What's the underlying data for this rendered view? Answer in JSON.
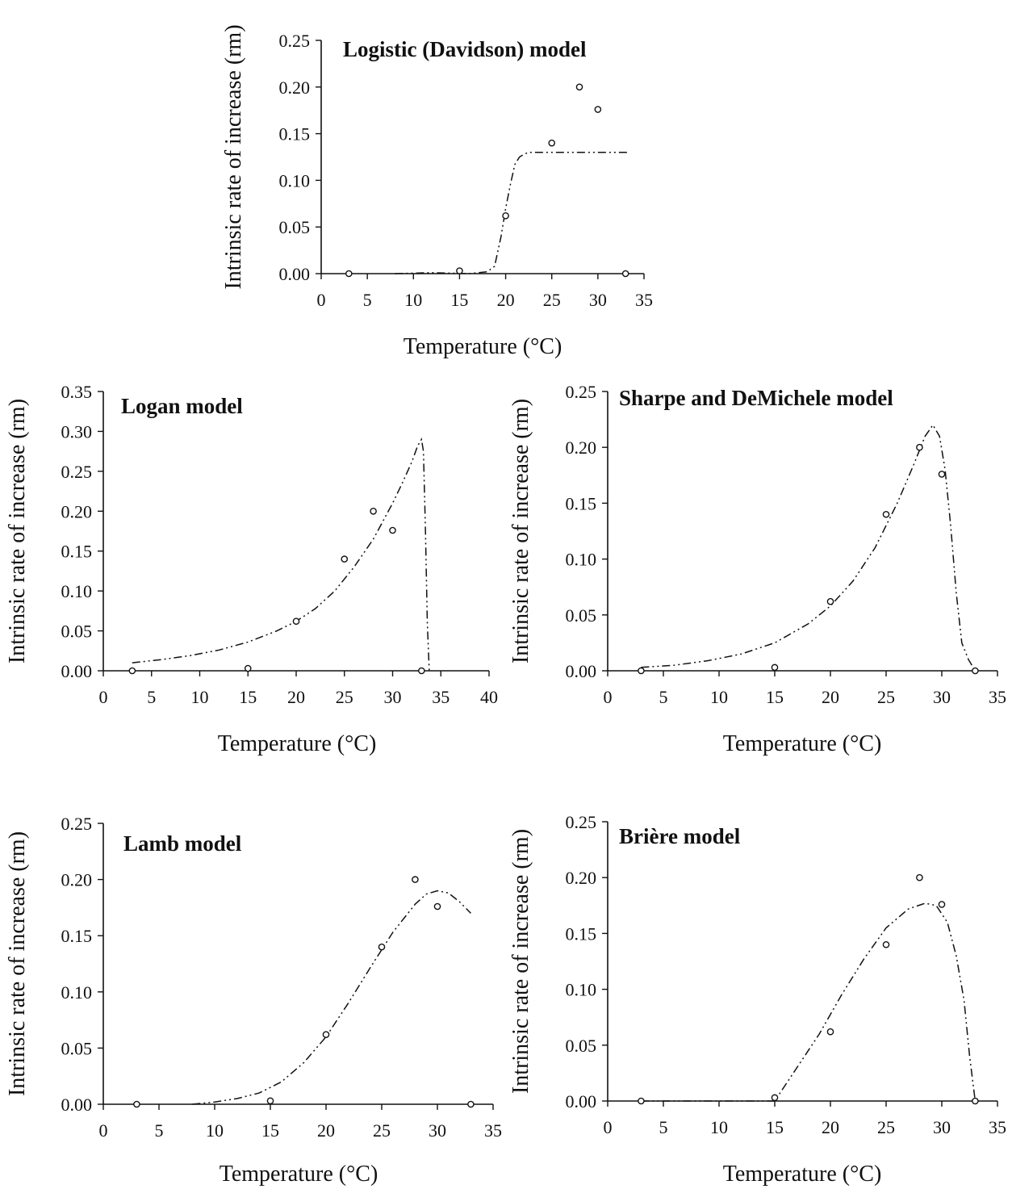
{
  "chart_data": [
    {
      "type": "scatter",
      "title": "Logistic (Davidson) model",
      "xlabel": "Temperature (°C)",
      "ylabel": "Intrinsic rate of increase (rm)",
      "xlim": [
        0,
        35
      ],
      "ylim": [
        0,
        0.25
      ],
      "xticks": [
        "0",
        "5",
        "10",
        "15",
        "20",
        "25",
        "30",
        "35"
      ],
      "yticks": [
        "0.00",
        "0.05",
        "0.10",
        "0.15",
        "0.20",
        "0.25"
      ],
      "observed": {
        "x": [
          3,
          15,
          20,
          25,
          28,
          30,
          33
        ],
        "y": [
          0.0,
          0.003,
          0.062,
          0.14,
          0.2,
          0.176,
          0.0
        ]
      },
      "fitted": {
        "x": [
          8,
          12,
          16,
          18,
          18.8,
          19.5,
          20.0,
          20.5,
          21.0,
          21.5,
          22.0,
          22.5,
          25,
          27,
          30,
          33.2
        ],
        "y": [
          0.0,
          0.001,
          0.0,
          0.002,
          0.008,
          0.04,
          0.07,
          0.095,
          0.117,
          0.125,
          0.128,
          0.13,
          0.13,
          0.13,
          0.13,
          0.13
        ]
      }
    },
    {
      "type": "scatter",
      "title": "Logan model",
      "xlabel": "Temperature (°C)",
      "ylabel": "Intrinsic rate of increase (rm)",
      "xlim": [
        0,
        40
      ],
      "ylim": [
        0,
        0.35
      ],
      "xticks": [
        "0",
        "5",
        "10",
        "15",
        "20",
        "25",
        "30",
        "35",
        "40"
      ],
      "yticks": [
        "0.00",
        "0.05",
        "0.10",
        "0.15",
        "0.20",
        "0.25",
        "0.30",
        "0.35"
      ],
      "observed": {
        "x": [
          3,
          15,
          20,
          25,
          28,
          30,
          33
        ],
        "y": [
          0.0,
          0.003,
          0.062,
          0.14,
          0.2,
          0.176,
          0.0
        ]
      },
      "fitted": {
        "x": [
          3,
          6,
          9,
          12,
          15,
          18,
          20,
          22,
          24,
          26,
          28,
          30,
          31,
          32,
          32.6,
          33.0,
          33.2,
          33.4,
          33.6,
          33.8
        ],
        "y": [
          0.01,
          0.014,
          0.019,
          0.026,
          0.036,
          0.05,
          0.062,
          0.078,
          0.1,
          0.13,
          0.165,
          0.21,
          0.235,
          0.262,
          0.282,
          0.29,
          0.275,
          0.18,
          0.06,
          0.0
        ]
      }
    },
    {
      "type": "scatter",
      "title": "Sharpe and DeMichele model",
      "xlabel": "Temperature (°C)",
      "ylabel": "Intrinsic rate of increase (rm)",
      "xlim": [
        0,
        35
      ],
      "ylim": [
        0,
        0.25
      ],
      "xticks": [
        "0",
        "5",
        "10",
        "15",
        "20",
        "25",
        "30",
        "35"
      ],
      "yticks": [
        "0.00",
        "0.05",
        "0.10",
        "0.15",
        "0.20",
        "0.25"
      ],
      "observed": {
        "x": [
          3,
          15,
          20,
          25,
          28,
          30,
          33
        ],
        "y": [
          0.0,
          0.003,
          0.062,
          0.14,
          0.2,
          0.176,
          0.0
        ]
      },
      "fitted": {
        "x": [
          3,
          6,
          9,
          12,
          15,
          18,
          20,
          22,
          24,
          26,
          27.5,
          28.5,
          29.2,
          29.8,
          30.3,
          30.8,
          31.3,
          31.8,
          32.4,
          33
        ],
        "y": [
          0.003,
          0.005,
          0.009,
          0.015,
          0.025,
          0.042,
          0.058,
          0.08,
          0.11,
          0.15,
          0.185,
          0.21,
          0.22,
          0.21,
          0.18,
          0.13,
          0.07,
          0.025,
          0.01,
          0.0
        ]
      }
    },
    {
      "type": "scatter",
      "title": "Lamb model",
      "xlabel": "Temperature (°C)",
      "ylabel": "Intrinsic rate of increase (rm)",
      "xlim": [
        0,
        35
      ],
      "ylim": [
        0,
        0.25
      ],
      "xticks": [
        "0",
        "5",
        "10",
        "15",
        "20",
        "25",
        "30",
        "35"
      ],
      "yticks": [
        "0.00",
        "0.05",
        "0.10",
        "0.15",
        "0.20",
        "0.25"
      ],
      "observed": {
        "x": [
          3,
          15,
          20,
          25,
          28,
          30,
          33
        ],
        "y": [
          0.0,
          0.003,
          0.062,
          0.14,
          0.2,
          0.176,
          0.0
        ]
      },
      "fitted": {
        "x": [
          8,
          10,
          12,
          14,
          16,
          18,
          20,
          22,
          24,
          26,
          28,
          29,
          30,
          31,
          32,
          33
        ],
        "y": [
          0.0,
          0.002,
          0.005,
          0.01,
          0.02,
          0.037,
          0.06,
          0.09,
          0.122,
          0.153,
          0.178,
          0.187,
          0.19,
          0.188,
          0.18,
          0.17
        ]
      }
    },
    {
      "type": "scatter",
      "title": "Brière model",
      "xlabel": "Temperature (°C)",
      "ylabel": "Intrinsic rate of increase (rm)",
      "xlim": [
        0,
        35
      ],
      "ylim": [
        0,
        0.25
      ],
      "xticks": [
        "0",
        "5",
        "10",
        "15",
        "20",
        "25",
        "30",
        "35"
      ],
      "yticks": [
        "0.00",
        "0.05",
        "0.10",
        "0.15",
        "0.20",
        "0.25"
      ],
      "observed": {
        "x": [
          3,
          15,
          20,
          25,
          28,
          30,
          33
        ],
        "y": [
          0.0,
          0.003,
          0.062,
          0.14,
          0.2,
          0.176,
          0.0
        ]
      },
      "fitted": {
        "x": [
          3,
          10,
          15,
          17,
          19,
          21,
          23,
          25,
          27,
          28.5,
          29.5,
          30.5,
          31.3,
          32,
          32.5,
          33
        ],
        "y": [
          0.0,
          0.0,
          0.0,
          0.03,
          0.06,
          0.095,
          0.127,
          0.155,
          0.172,
          0.177,
          0.175,
          0.16,
          0.13,
          0.09,
          0.04,
          0.0
        ]
      }
    }
  ]
}
